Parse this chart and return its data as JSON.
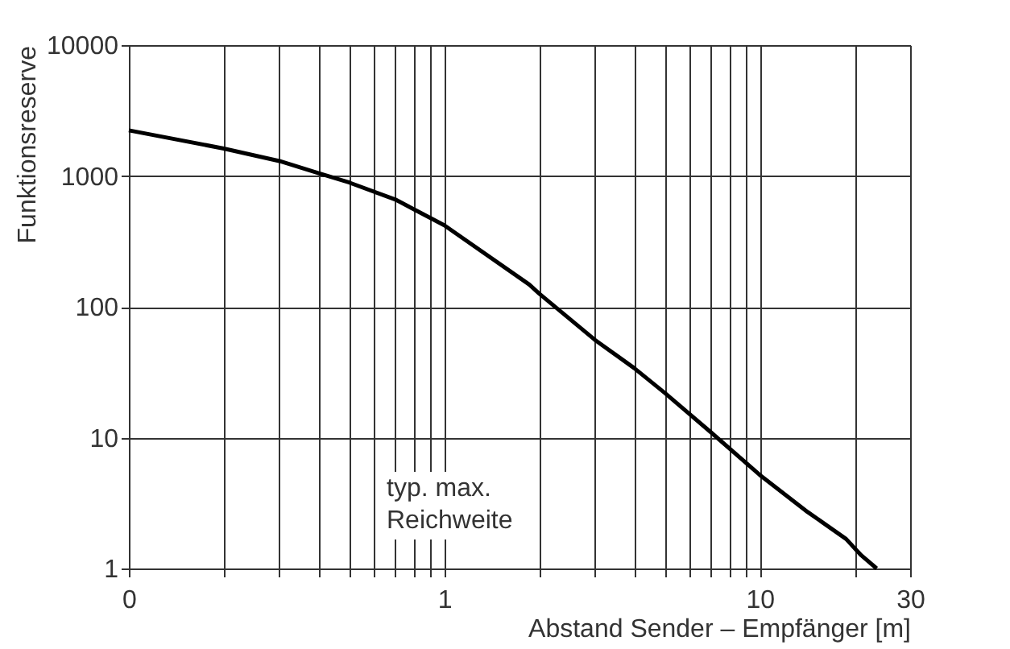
{
  "chart_data": {
    "type": "line",
    "xlabel": "Abstand Sender – Empfänger [m]",
    "ylabel": "Funktionsreserve",
    "log": "xy",
    "grid": true,
    "marker": "none",
    "line_style": "solid",
    "xlim": [
      0.1,
      30
    ],
    "xticks": [
      {
        "value": 0.1,
        "label": "0"
      },
      {
        "value": 0.2,
        "label": null
      },
      {
        "value": 0.3,
        "label": null
      },
      {
        "value": 0.4,
        "label": null
      },
      {
        "value": 0.5,
        "label": null
      },
      {
        "value": 0.6,
        "label": null
      },
      {
        "value": 0.7,
        "label": null
      },
      {
        "value": 0.8,
        "label": null
      },
      {
        "value": 0.9,
        "label": null
      },
      1,
      {
        "value": 2,
        "label": null
      },
      {
        "value": 3,
        "label": null
      },
      {
        "value": 4,
        "label": null
      },
      {
        "value": 5,
        "label": null
      },
      {
        "value": 6,
        "label": null
      },
      {
        "value": 7,
        "label": null
      },
      {
        "value": 8,
        "label": null
      },
      {
        "value": 9,
        "label": null
      },
      10,
      {
        "value": 20,
        "label": null
      },
      30
    ],
    "ylim": [
      1,
      10000
    ],
    "yticks": [
      1,
      10,
      100,
      1000,
      10000
    ],
    "annotations": [
      "typ. max.\nReichweite"
    ],
    "series": [
      {
        "color": "#000000",
        "x": [
          0.1,
          0.2,
          0.3,
          0.4,
          0.5,
          0.7,
          1.0,
          1.86,
          2,
          3,
          4,
          5,
          7,
          10,
          14.2,
          18.8,
          21,
          23.5
        ],
        "values": [
          2230,
          1620,
          1300,
          1050,
          890,
          660,
          420,
          148,
          126,
          56,
          34,
          22,
          11,
          5.2,
          2.7,
          1.68,
          1.26,
          1.0
        ]
      }
    ]
  }
}
